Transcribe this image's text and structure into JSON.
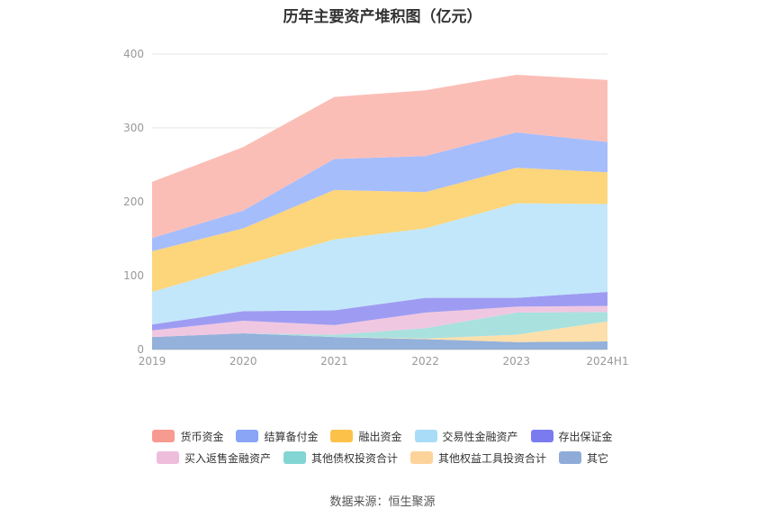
{
  "chart_data": {
    "type": "area",
    "stacked": true,
    "title": "历年主要资产堆积图（亿元）",
    "source": "数据来源：恒生聚源",
    "categories": [
      "2019",
      "2020",
      "2021",
      "2022",
      "2023",
      "2024H1"
    ],
    "ylim": [
      0,
      400
    ],
    "yticks": [
      "0",
      "100",
      "200",
      "300",
      "400"
    ],
    "grid": true,
    "legend_position": "bottom",
    "series": [
      {
        "name": "其它",
        "color": "#93b1db",
        "values": [
          17,
          22,
          17,
          14,
          10,
          11
        ]
      },
      {
        "name": "其他权益工具投资合计",
        "color": "#fddfab",
        "values": [
          0,
          0,
          0,
          1,
          10,
          27
        ]
      },
      {
        "name": "其他债权投资合计",
        "color": "#a9e1df",
        "values": [
          0,
          0,
          3,
          14,
          30,
          13
        ]
      },
      {
        "name": "买入返售金融资产",
        "color": "#f0c7e1",
        "values": [
          9,
          17,
          13,
          21,
          8,
          8
        ]
      },
      {
        "name": "存出保证金",
        "color": "#9e9cf2",
        "values": [
          8,
          13,
          20,
          20,
          12,
          19
        ]
      },
      {
        "name": "交易性金融资产",
        "color": "#c2e7fa",
        "values": [
          44,
          62,
          96,
          94,
          128,
          119
        ]
      },
      {
        "name": "融出资金",
        "color": "#fdd57a",
        "values": [
          55,
          50,
          67,
          49,
          48,
          43
        ]
      },
      {
        "name": "结算备付金",
        "color": "#a6bdfc",
        "values": [
          18,
          24,
          42,
          49,
          48,
          41
        ]
      },
      {
        "name": "货币资金",
        "color": "#fbbeb6",
        "values": [
          76,
          86,
          84,
          89,
          78,
          84
        ]
      }
    ],
    "legend_order": [
      "货币资金",
      "结算备付金",
      "融出资金",
      "交易性金融资产",
      "存出保证金",
      "买入返售金融资产",
      "其他债权投资合计",
      "其他权益工具投资合计",
      "其它"
    ],
    "legend_colors": {
      "货币资金": "#f79b90",
      "结算备付金": "#8aa4f6",
      "融出资金": "#fbc24a",
      "交易性金融资产": "#a8dcf7",
      "存出保证金": "#7b7bf0",
      "买入返售金融资产": "#eebddc",
      "其他债权投资合计": "#83d5d3",
      "其他权益工具投资合计": "#fcd49b",
      "其它": "#8fabd8"
    }
  }
}
